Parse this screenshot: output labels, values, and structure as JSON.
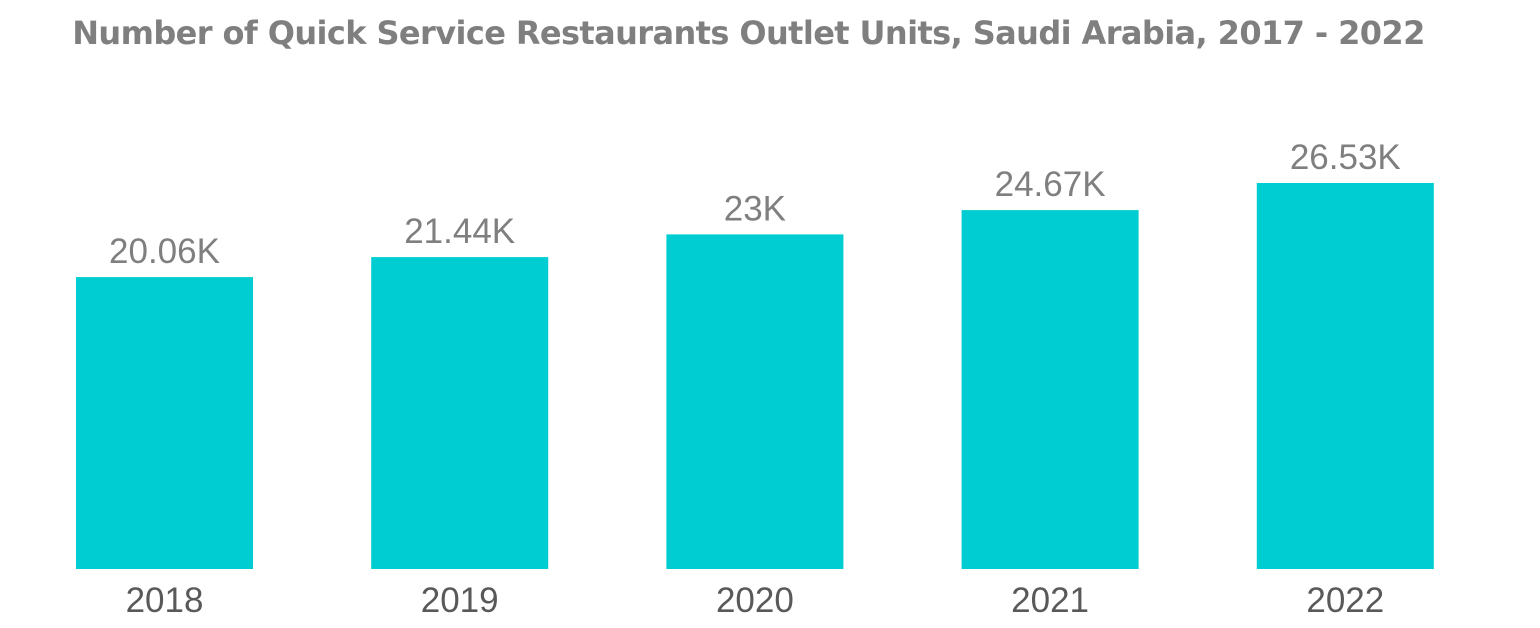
{
  "chart_data": {
    "type": "bar",
    "title": "Number of Quick Service Restaurants Outlet Units, Saudi Arabia, 2017 - 2022",
    "xlabel": "",
    "ylabel": "",
    "categories": [
      "2018",
      "2019",
      "2020",
      "2021",
      "2022"
    ],
    "values": [
      20.06,
      21.44,
      23,
      24.67,
      26.53
    ],
    "value_labels": [
      "20.06K",
      "21.44K",
      "23K",
      "24.67K",
      "26.53K"
    ],
    "unit": "K",
    "ylim": [
      0,
      26.53
    ],
    "grid": false,
    "legend": "none"
  },
  "colors": {
    "bar": "#00cdd1",
    "text": "#7f7f7f",
    "tick_text": "#595959",
    "background": "#ffffff"
  }
}
